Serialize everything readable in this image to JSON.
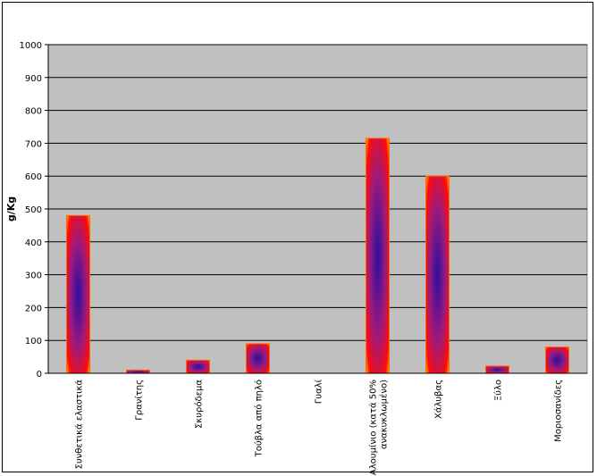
{
  "chart_data": {
    "type": "bar",
    "title": "",
    "xlabel": "",
    "ylabel": "g/Kg",
    "ylim": [
      0,
      1000
    ],
    "yticks": [
      0,
      100,
      200,
      300,
      400,
      500,
      600,
      700,
      800,
      900,
      1000
    ],
    "grid": true,
    "categories": [
      [
        "Συνθετικά ελαστικά"
      ],
      [
        "Γρανίτης"
      ],
      [
        "Σκυρόδεμα"
      ],
      [
        "Τούβλα από πηλό"
      ],
      [
        "Γυαλί"
      ],
      [
        "Αλουμίνιο (κατά 50%",
        "ανακυκλωμένο)"
      ],
      [
        "Χάλυβας"
      ],
      [
        "Ξύλο"
      ],
      [
        "Μοριοσανίδες"
      ]
    ],
    "values": [
      480,
      10,
      40,
      90,
      0,
      715,
      600,
      22,
      80
    ],
    "colors": {
      "plot_background": "#c0c0c0",
      "bar_center": "#2a0fa0",
      "bar_mid": "#a01a7a",
      "bar_edge": "#ff0a0a",
      "bar_end": "#ffb000"
    }
  }
}
